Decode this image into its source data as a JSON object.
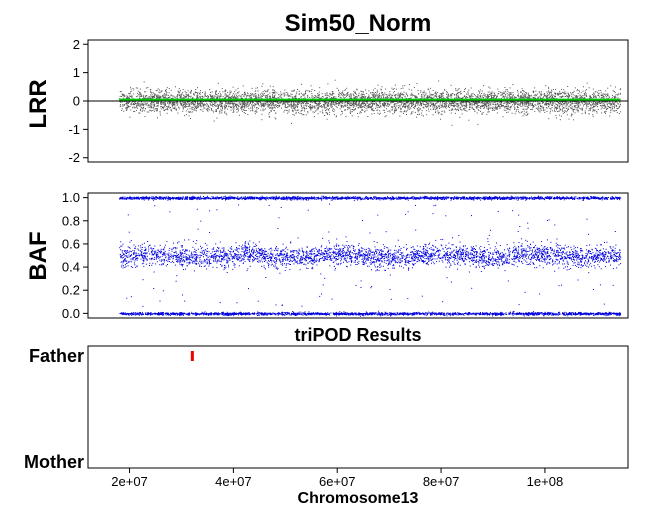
{
  "chart_data": [
    {
      "type": "scatter",
      "panel": "lrr",
      "title": "Sim50_Norm",
      "ylabel": "LRR",
      "ylim": [
        -2.15,
        2.15
      ],
      "yticks": [
        "-2",
        "-1",
        "0",
        "1",
        "2"
      ],
      "xlim": [
        12000000,
        116000000
      ],
      "point_x_range": [
        18000000,
        114500000
      ],
      "point_center": 0,
      "point_spread": 0.2,
      "point_color": "#555555",
      "reference_line": 0,
      "reference_line_color": "#000000",
      "smooth_line": 0.05,
      "smooth_line_color": "#00c800",
      "grid": false
    },
    {
      "type": "scatter",
      "panel": "baf",
      "ylabel": "BAF",
      "ylim": [
        -0.04,
        1.04
      ],
      "yticks": [
        "0.0",
        "0.2",
        "0.4",
        "0.6",
        "0.8",
        "1.0"
      ],
      "xlim": [
        12000000,
        116000000
      ],
      "point_x_range": [
        18000000,
        114500000
      ],
      "bands": [
        {
          "center": 1.0,
          "spread": 0.006
        },
        {
          "center": 0.5,
          "spread": 0.045
        },
        {
          "center": 0.0,
          "spread": 0.006
        }
      ],
      "point_color": "#0000dd",
      "grid": false
    },
    {
      "type": "scatter",
      "panel": "tripod",
      "subtitle": "triPOD Results",
      "xlabel": "Chromosome13",
      "xlim": [
        12000000,
        116000000
      ],
      "xticks": [
        {
          "value": 20000000,
          "label": "2e+07"
        },
        {
          "value": 40000000,
          "label": "4e+07"
        },
        {
          "value": 60000000,
          "label": "6e+07"
        },
        {
          "value": 80000000,
          "label": "8e+07"
        },
        {
          "value": 100000000,
          "label": "1e+08"
        }
      ],
      "categories": [
        "Father",
        "Mother"
      ],
      "segments": [
        {
          "parent": "Father",
          "x_start": 32000000,
          "x_end": 32200000,
          "color": "#ee0000"
        }
      ],
      "grid": false
    }
  ]
}
